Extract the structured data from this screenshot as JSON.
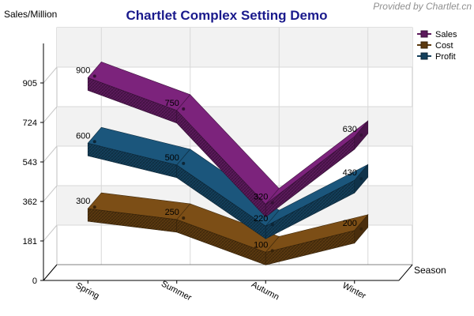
{
  "chart_data": {
    "type": "line",
    "title": "Chartlet Complex Setting Demo",
    "credit": "Provided by Chartlet.cn",
    "xlabel": "Season",
    "ylabel": "Sales/Million",
    "categories": [
      "Spring",
      "Summer",
      "Autumn",
      "Winter"
    ],
    "y_ticks": [
      0,
      181,
      362,
      543,
      724,
      905
    ],
    "ylim": [
      0,
      1086
    ],
    "grid": true,
    "style": "3d-ribbon",
    "legend_position": "right",
    "series": [
      {
        "name": "Sales",
        "values": [
          900,
          750,
          320,
          630
        ],
        "color": "#5c1a5c"
      },
      {
        "name": "Cost",
        "values": [
          300,
          250,
          100,
          200
        ],
        "color": "#5c3a10"
      },
      {
        "name": "Profit",
        "values": [
          600,
          500,
          220,
          430
        ],
        "color": "#14405c"
      }
    ]
  }
}
